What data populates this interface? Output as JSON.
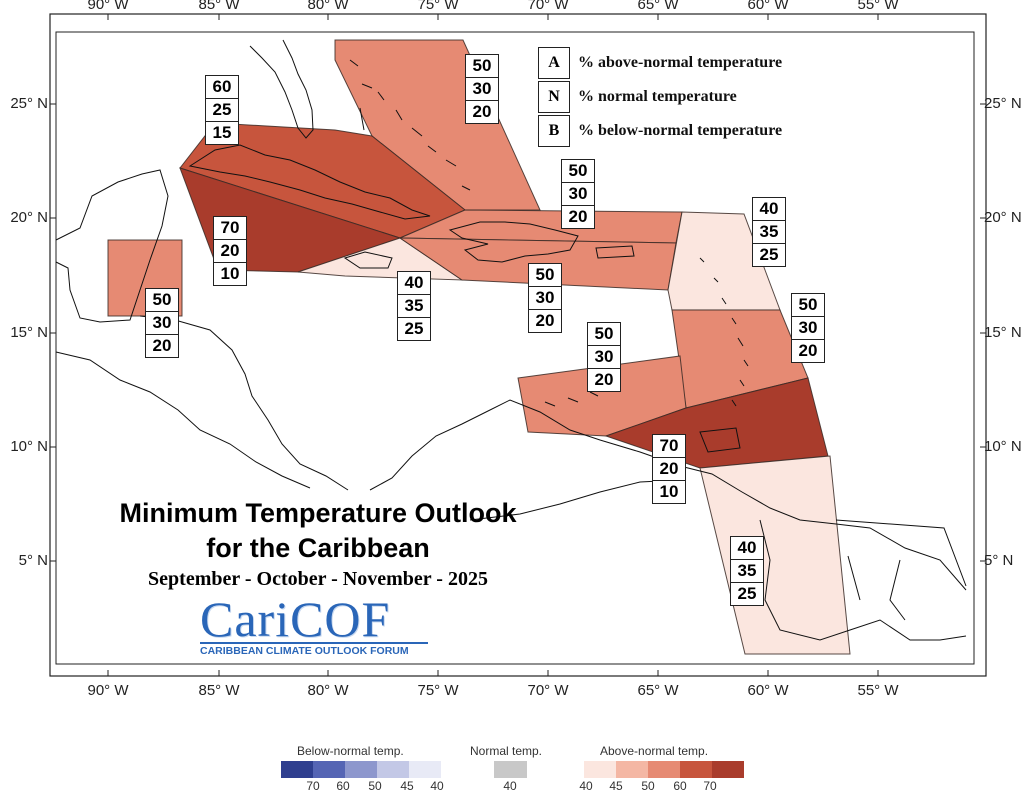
{
  "axes": {
    "longitudes": [
      "90° W",
      "85° W",
      "80° W",
      "75° W",
      "70° W",
      "65° W",
      "60° W",
      "55° W"
    ],
    "latitudes": [
      "25° N",
      "20° N",
      "15° N",
      "10° N",
      "5° N"
    ]
  },
  "key": {
    "rows": [
      {
        "letter": "A",
        "text": "% above-normal temperature"
      },
      {
        "letter": "N",
        "text": "% normal temperature"
      },
      {
        "letter": "B",
        "text": "% below-normal temperature"
      }
    ]
  },
  "title": {
    "line1": "Minimum Temperature Outlook",
    "line2": "for the Caribbean",
    "season": "September - October - November - 2025"
  },
  "logo": {
    "name": "CariCOF",
    "subtitle": "CARIBBEAN CLIMATE OUTLOOK FORUM"
  },
  "regions": [
    {
      "name": "cuba-cayman",
      "probs": [
        "60",
        "25",
        "15"
      ],
      "color": "#c7553d"
    },
    {
      "name": "western-cuba-south",
      "probs": [
        "70",
        "20",
        "10"
      ],
      "color": "#a93c2c"
    },
    {
      "name": "bahamas-turks-caicos",
      "probs": [
        "50",
        "30",
        "20"
      ],
      "color": "#e68a73"
    },
    {
      "name": "hispaniola-north",
      "probs": [
        "50",
        "30",
        "20"
      ],
      "color": "#e68a73"
    },
    {
      "name": "hispaniola-puerto-rico",
      "probs": [
        "50",
        "30",
        "20"
      ],
      "color": "#e68a73"
    },
    {
      "name": "jamaica",
      "probs": [
        "40",
        "35",
        "25"
      ],
      "color": "#fbe6df"
    },
    {
      "name": "belize",
      "probs": [
        "50",
        "30",
        "20"
      ],
      "color": "#e68a73"
    },
    {
      "name": "leeward-islands",
      "probs": [
        "40",
        "35",
        "25"
      ],
      "color": "#fbe6df"
    },
    {
      "name": "windward-islands",
      "probs": [
        "50",
        "30",
        "20"
      ],
      "color": "#e68a73"
    },
    {
      "name": "abc-islands",
      "probs": [
        "50",
        "30",
        "20"
      ],
      "color": "#e68a73"
    },
    {
      "name": "trinidad-tobago",
      "probs": [
        "70",
        "20",
        "10"
      ],
      "color": "#a93c2c"
    },
    {
      "name": "guyana-suriname",
      "probs": [
        "40",
        "35",
        "25"
      ],
      "color": "#fbe6df"
    }
  ],
  "legend": {
    "below": {
      "title": "Below-normal temp.",
      "ticks": [
        "70",
        "60",
        "50",
        "45",
        "40"
      ],
      "colors": [
        "#2f3f8f",
        "#5565b4",
        "#8d97cd",
        "#c3c8e6",
        "#e8eaf6"
      ]
    },
    "normal": {
      "title": "Normal temp.",
      "ticks": [
        "40"
      ],
      "colors": [
        "#c8c8c8"
      ]
    },
    "above": {
      "title": "Above-normal temp.",
      "ticks": [
        "40",
        "45",
        "50",
        "60",
        "70"
      ],
      "colors": [
        "#fbe6df",
        "#f4b7a4",
        "#e68a73",
        "#c7553d",
        "#a93c2c"
      ]
    }
  }
}
